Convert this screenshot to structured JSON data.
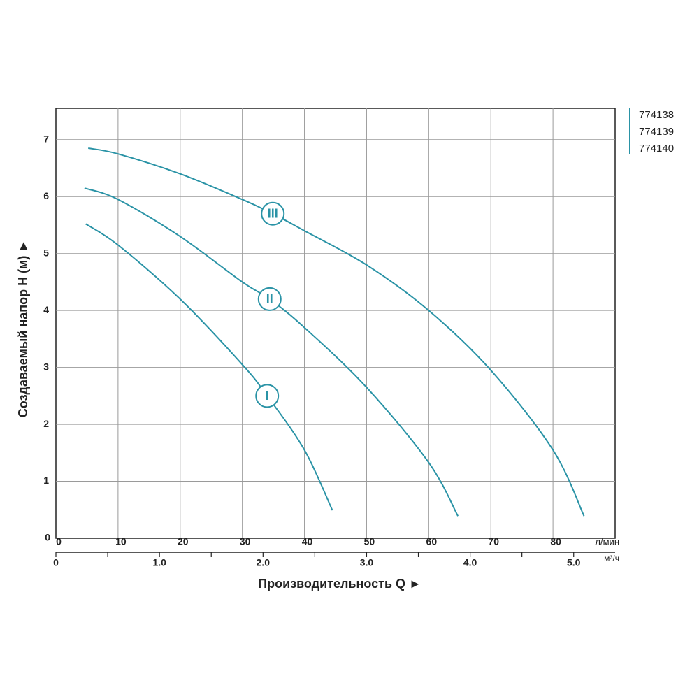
{
  "chart_data": {
    "type": "line",
    "x_label": "Производительность Q ►",
    "y_label": "Создаваемый напор H (м) ►",
    "x_unit": "л/мин",
    "x2_unit": "м³/ч",
    "legend": [
      "774138",
      "774139",
      "774140"
    ],
    "color": "#2a93a6",
    "grid": true,
    "xlim": [
      0,
      90
    ],
    "xticks": [
      0,
      10,
      20,
      30,
      40,
      50,
      60,
      70,
      80
    ],
    "ylim": [
      0,
      7.55
    ],
    "yticks": [
      0,
      1,
      2,
      3,
      4,
      5,
      6,
      7
    ],
    "x2lim": [
      0,
      5.4
    ],
    "x2ticks": [
      0,
      {
        "value": 0.5,
        "label": ""
      },
      {
        "value": 1,
        "label": "1.0"
      },
      {
        "value": 1.5,
        "label": ""
      },
      {
        "value": 2,
        "label": "2.0"
      },
      {
        "value": 2.5,
        "label": ""
      },
      {
        "value": 3,
        "label": "3.0"
      },
      {
        "value": 3.5,
        "label": ""
      },
      {
        "value": 4,
        "label": "4.0"
      },
      {
        "value": 4.5,
        "label": ""
      },
      {
        "value": 5,
        "label": "5.0"
      }
    ],
    "series": [
      {
        "name": "I",
        "x": [
          4.8,
          10,
          20,
          30,
          34,
          40,
          44.5
        ],
        "values": [
          5.52,
          5.15,
          4.2,
          3.05,
          2.5,
          1.55,
          0.49
        ]
      },
      {
        "name": "II",
        "x": [
          4.6,
          10,
          20,
          30,
          34.4,
          40,
          50,
          60,
          64.7
        ],
        "values": [
          6.15,
          5.95,
          5.3,
          4.5,
          4.2,
          3.7,
          2.65,
          1.33,
          0.39
        ]
      },
      {
        "name": "III",
        "x": [
          5.2,
          10,
          20,
          30,
          34.9,
          40,
          50,
          60,
          70,
          80,
          85
        ],
        "values": [
          6.85,
          6.75,
          6.4,
          5.95,
          5.7,
          5.4,
          4.8,
          4.0,
          2.95,
          1.55,
          0.39
        ]
      }
    ],
    "annotations": [
      {
        "text": "I",
        "x": 34,
        "y": 2.5
      },
      {
        "text": "II",
        "x": 34.4,
        "y": 4.2
      },
      {
        "text": "III",
        "x": 34.9,
        "y": 5.7
      }
    ]
  }
}
